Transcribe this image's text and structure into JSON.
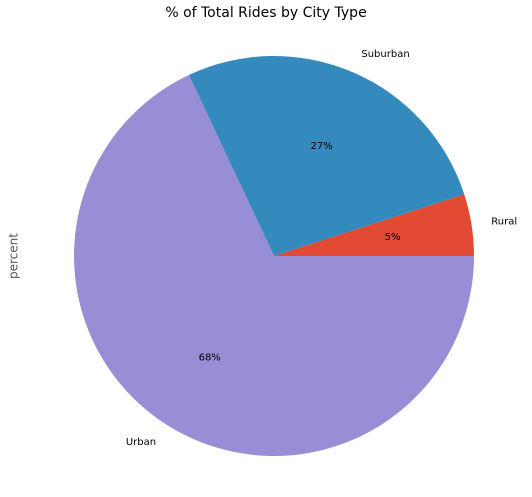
{
  "chart_data": {
    "type": "pie",
    "title": "% of Total Rides by City Type",
    "ylabel": "percent",
    "categories": [
      "Rural",
      "Suburban",
      "Urban"
    ],
    "values": [
      5,
      27,
      68
    ],
    "value_labels": [
      "5%",
      "27%",
      "68%"
    ],
    "colors": [
      "#E24A33",
      "#348ABD",
      "#988ED5"
    ]
  }
}
